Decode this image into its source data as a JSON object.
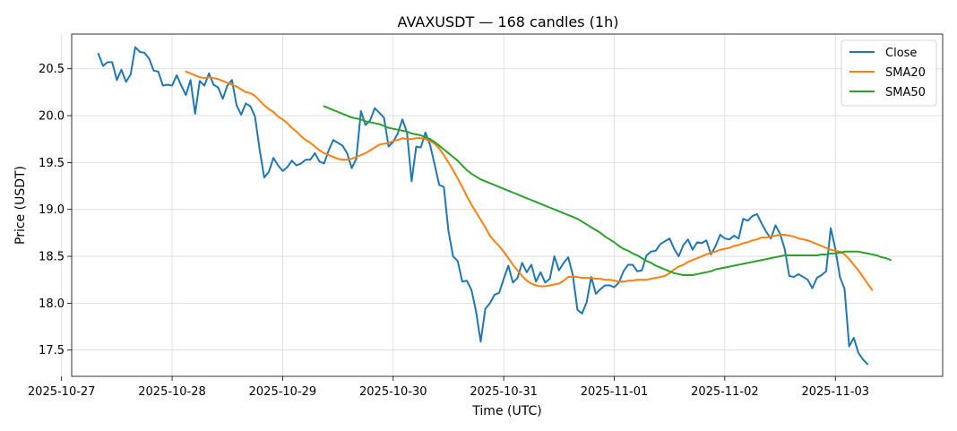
{
  "chart_data": {
    "type": "line",
    "title": "AVAXUSDT — 168 candles (1h)",
    "xlabel": "Time (UTC)",
    "ylabel": "Price (USDT)",
    "x_ticks": [
      "2025-10-27",
      "2025-10-28",
      "2025-10-29",
      "2025-10-30",
      "2025-10-31",
      "2025-11-01",
      "2025-11-02",
      "2025-11-03"
    ],
    "y_ticks": [
      17.5,
      18.0,
      18.5,
      19.0,
      19.5,
      20.0,
      20.5
    ],
    "ylim": [
      17.22,
      20.87
    ],
    "xlim_hours": [
      -5.8,
      183.3
    ],
    "x_start": "2025-10-27 08:00",
    "x_step_hours": 1,
    "grid": true,
    "legend_position": "top-right",
    "series": [
      {
        "name": "Close",
        "color": "#1f77b4",
        "values": [
          20.66,
          20.53,
          20.57,
          20.57,
          20.38,
          20.49,
          20.36,
          20.44,
          20.73,
          20.68,
          20.67,
          20.61,
          20.48,
          20.47,
          20.32,
          20.33,
          20.32,
          20.43,
          20.32,
          20.22,
          20.38,
          20.02,
          20.37,
          20.32,
          20.45,
          20.33,
          20.3,
          20.18,
          20.32,
          20.38,
          20.11,
          20.01,
          20.13,
          20.1,
          19.99,
          19.64,
          19.34,
          19.4,
          19.55,
          19.47,
          19.41,
          19.45,
          19.52,
          19.47,
          19.49,
          19.53,
          19.53,
          19.6,
          19.51,
          19.49,
          19.63,
          19.74,
          19.71,
          19.68,
          19.6,
          19.44,
          19.54,
          20.05,
          19.9,
          19.95,
          20.08,
          20.03,
          19.98,
          19.67,
          19.72,
          19.81,
          19.96,
          19.82,
          19.3,
          19.67,
          19.66,
          19.82,
          19.69,
          19.48,
          19.26,
          19.24,
          18.77,
          18.5,
          18.45,
          18.23,
          18.24,
          18.14,
          17.91,
          17.59,
          17.94,
          18.0,
          18.09,
          18.11,
          18.26,
          18.4,
          18.22,
          18.27,
          18.43,
          18.33,
          18.41,
          18.23,
          18.33,
          18.22,
          18.26,
          18.5,
          18.35,
          18.43,
          18.49,
          18.3,
          17.93,
          17.89,
          18.01,
          18.28,
          18.1,
          18.15,
          18.19,
          18.19,
          18.17,
          18.22,
          18.34,
          18.41,
          18.41,
          18.34,
          18.35,
          18.51,
          18.55,
          18.56,
          18.63,
          18.66,
          18.69,
          18.58,
          18.5,
          18.62,
          18.68,
          18.57,
          18.65,
          18.64,
          18.67,
          18.52,
          18.61,
          18.73,
          18.69,
          18.68,
          18.72,
          18.69,
          18.9,
          18.88,
          18.93,
          18.95,
          18.85,
          18.76,
          18.69,
          18.83,
          18.74,
          18.58,
          18.29,
          18.28,
          18.31,
          18.28,
          18.25,
          18.16,
          18.27,
          18.3,
          18.34,
          18.8,
          18.58,
          18.28,
          18.15,
          17.54,
          17.63,
          17.47,
          17.4,
          17.35
        ]
      },
      {
        "name": "SMA20",
        "color": "#ff7f0e",
        "values": [
          null,
          null,
          null,
          null,
          null,
          null,
          null,
          null,
          null,
          null,
          null,
          null,
          null,
          null,
          null,
          null,
          null,
          null,
          null,
          20.47,
          20.45,
          20.43,
          20.41,
          20.4,
          20.41,
          20.4,
          20.39,
          20.37,
          20.35,
          20.33,
          20.31,
          20.28,
          20.25,
          20.24,
          20.21,
          20.16,
          20.11,
          20.07,
          20.04,
          19.99,
          19.96,
          19.92,
          19.87,
          19.83,
          19.78,
          19.74,
          19.71,
          19.67,
          19.63,
          19.6,
          19.58,
          19.56,
          19.54,
          19.53,
          19.53,
          19.54,
          19.56,
          19.58,
          19.6,
          19.63,
          19.66,
          19.69,
          19.7,
          19.71,
          19.73,
          19.74,
          19.76,
          19.75,
          19.75,
          19.76,
          19.76,
          19.75,
          19.73,
          19.7,
          19.65,
          19.58,
          19.5,
          19.42,
          19.33,
          19.24,
          19.14,
          19.05,
          18.97,
          18.89,
          18.81,
          18.72,
          18.66,
          18.61,
          18.55,
          18.48,
          18.41,
          18.35,
          18.29,
          18.24,
          18.21,
          18.19,
          18.18,
          18.18,
          18.19,
          18.2,
          18.21,
          18.24,
          18.28,
          18.28,
          18.28,
          18.27,
          18.27,
          18.27,
          18.26,
          18.26,
          18.25,
          18.25,
          18.24,
          18.23,
          18.23,
          18.24,
          18.24,
          18.25,
          18.25,
          18.25,
          18.26,
          18.27,
          18.28,
          18.29,
          18.32,
          18.36,
          18.39,
          18.41,
          18.44,
          18.46,
          18.48,
          18.5,
          18.52,
          18.54,
          18.55,
          18.57,
          18.58,
          18.59,
          18.61,
          18.62,
          18.64,
          18.65,
          18.67,
          18.68,
          18.7,
          18.7,
          18.71,
          18.72,
          18.73,
          18.73,
          18.72,
          18.71,
          18.69,
          18.68,
          18.67,
          18.65,
          18.63,
          18.61,
          18.59,
          18.57,
          18.56,
          18.55,
          18.52,
          18.47,
          18.41,
          18.35,
          18.28,
          18.21,
          18.14
        ]
      },
      {
        "name": "SMA50",
        "color": "#2ca02c",
        "values": [
          null,
          null,
          null,
          null,
          null,
          null,
          null,
          null,
          null,
          null,
          null,
          null,
          null,
          null,
          null,
          null,
          null,
          null,
          null,
          null,
          null,
          null,
          null,
          null,
          null,
          null,
          null,
          null,
          null,
          null,
          null,
          null,
          null,
          null,
          null,
          null,
          null,
          null,
          null,
          null,
          null,
          null,
          null,
          null,
          null,
          null,
          null,
          null,
          null,
          20.1,
          20.08,
          20.06,
          20.04,
          20.02,
          20.0,
          19.98,
          19.97,
          19.96,
          19.94,
          19.93,
          19.92,
          19.91,
          19.89,
          19.87,
          19.86,
          19.85,
          19.84,
          19.83,
          19.81,
          19.8,
          19.79,
          19.77,
          19.75,
          19.72,
          19.68,
          19.64,
          19.6,
          19.56,
          19.52,
          19.47,
          19.42,
          19.38,
          19.35,
          19.32,
          19.3,
          19.28,
          19.26,
          19.24,
          19.22,
          19.2,
          19.18,
          19.16,
          19.14,
          19.12,
          19.1,
          19.08,
          19.06,
          19.04,
          19.02,
          19.0,
          18.98,
          18.96,
          18.94,
          18.92,
          18.9,
          18.87,
          18.84,
          18.81,
          18.78,
          18.75,
          18.71,
          18.68,
          18.65,
          18.61,
          18.58,
          18.56,
          18.53,
          18.51,
          18.48,
          18.45,
          18.43,
          18.4,
          18.38,
          18.36,
          18.34,
          18.32,
          18.31,
          18.3,
          18.3,
          18.3,
          18.31,
          18.32,
          18.33,
          18.34,
          18.36,
          18.37,
          18.38,
          18.39,
          18.4,
          18.41,
          18.42,
          18.43,
          18.44,
          18.45,
          18.46,
          18.47,
          18.48,
          18.49,
          18.5,
          18.51,
          18.51,
          18.51,
          18.51,
          18.51,
          18.51,
          18.51,
          18.51,
          18.52,
          18.52,
          18.53,
          18.53,
          18.54,
          18.55,
          18.55,
          18.55,
          18.55,
          18.54,
          18.53,
          18.52,
          18.51,
          18.49,
          18.48,
          18.46
        ]
      }
    ]
  }
}
